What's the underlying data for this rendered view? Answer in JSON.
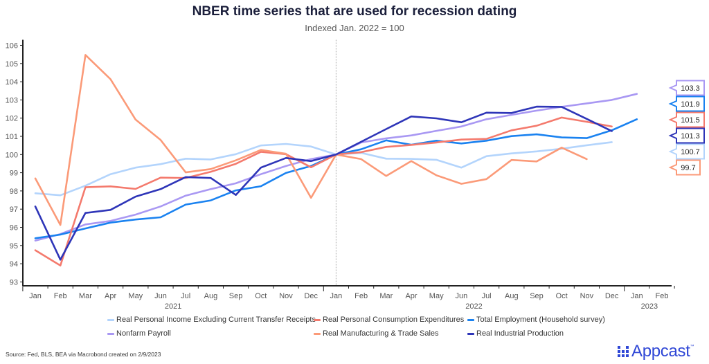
{
  "header": {
    "title": "NBER time series that are used for recession dating",
    "subtitle": "Indexed Jan. 2022 = 100"
  },
  "footer": {
    "source": "Source: Fed, BLS, BEA via Macrobond created on 2/9/2023",
    "logo_text": "Appcast",
    "logo_tm": "™"
  },
  "chart_data": {
    "type": "line",
    "title": "NBER time series that are used for recession dating",
    "subtitle": "Indexed Jan. 2022 = 100",
    "xlabel": "",
    "ylabel": "",
    "ylim": [
      93,
      106
    ],
    "yticks": [
      93,
      94,
      95,
      96,
      97,
      98,
      99,
      100,
      101,
      102,
      103,
      104,
      105,
      106
    ],
    "grid": false,
    "legend_position": "bottom",
    "x": [
      "Jan",
      "Feb",
      "Mar",
      "Apr",
      "May",
      "Jun",
      "Jul",
      "Aug",
      "Sep",
      "Oct",
      "Nov",
      "Dec",
      "Jan",
      "Feb",
      "Mar",
      "Apr",
      "May",
      "Jun",
      "Jul",
      "Aug",
      "Sep",
      "Oct",
      "Nov",
      "Dec",
      "Jan",
      "Feb"
    ],
    "year_labels": [
      {
        "label": "2021",
        "month_index": 5.5
      },
      {
        "label": "2022",
        "month_index": 17.5
      },
      {
        "label": "2023",
        "month_index": 24.5
      }
    ],
    "reference_line": {
      "month_index": 12,
      "style": "dotted",
      "label": "Jan. 2022"
    },
    "series": [
      {
        "name": "Real Personal Income Excluding Current Transfer Receipts",
        "color": "#b3d4fc",
        "values": [
          97.87,
          97.76,
          98.29,
          98.92,
          99.28,
          99.47,
          99.77,
          99.73,
          100.02,
          100.5,
          100.58,
          100.44,
          100.0,
          100.09,
          99.77,
          99.76,
          99.71,
          99.28,
          99.91,
          100.06,
          100.17,
          100.32,
          100.51,
          100.68
        ],
        "end_label": "100.7"
      },
      {
        "name": "Real Personal Consumption Expenditures",
        "color": "#f47a6d",
        "values": [
          94.74,
          93.9,
          98.2,
          98.25,
          98.11,
          98.73,
          98.71,
          99.05,
          99.49,
          100.15,
          100.02,
          99.3,
          100.0,
          100.13,
          100.42,
          100.53,
          100.66,
          100.82,
          100.86,
          101.33,
          101.58,
          102.03,
          101.8,
          101.54
        ],
        "end_label": "101.5"
      },
      {
        "name": "Total Employment (Household survey)",
        "color": "#1a82f0",
        "values": [
          95.4,
          95.6,
          95.94,
          96.26,
          96.43,
          96.55,
          97.25,
          97.48,
          98.03,
          98.26,
          98.99,
          99.37,
          100.0,
          100.29,
          100.78,
          100.54,
          100.76,
          100.61,
          100.76,
          101.01,
          101.11,
          100.94,
          100.9,
          101.33,
          101.94
        ],
        "end_label": "101.9"
      },
      {
        "name": "Nonfarm Payroll",
        "color": "#a998f3",
        "values": [
          95.27,
          95.63,
          96.16,
          96.35,
          96.7,
          97.15,
          97.74,
          98.1,
          98.42,
          98.92,
          99.37,
          99.75,
          100.0,
          100.66,
          100.89,
          101.05,
          101.3,
          101.54,
          101.94,
          102.18,
          102.41,
          102.62,
          102.81,
          103.0,
          103.33
        ],
        "end_label": "103.3"
      },
      {
        "name": "Real Manufacturing & Trade Sales",
        "color": "#fb9a78",
        "values": [
          98.69,
          96.13,
          105.47,
          104.14,
          101.92,
          100.8,
          99.02,
          99.2,
          99.68,
          100.25,
          100.04,
          97.62,
          100.0,
          99.75,
          98.82,
          99.64,
          98.86,
          98.39,
          98.65,
          99.7,
          99.62,
          100.38,
          99.75
        ],
        "end_label": "99.7"
      },
      {
        "name": "Real Industrial Production",
        "color": "#2e35b8",
        "values": [
          97.15,
          94.22,
          96.79,
          96.96,
          97.69,
          98.1,
          98.76,
          98.71,
          97.78,
          99.28,
          99.81,
          99.64,
          100.0,
          100.7,
          101.4,
          102.09,
          101.99,
          101.77,
          102.3,
          102.28,
          102.63,
          102.62,
          101.96,
          101.29
        ],
        "end_label": "101.3"
      }
    ],
    "end_label_order": [
      "Nonfarm Payroll",
      "Total Employment (Household survey)",
      "Real Personal Consumption Expenditures",
      "Real Industrial Production",
      "Real Personal Income Excluding Current Transfer Receipts",
      "Real Manufacturing & Trade Sales"
    ]
  }
}
